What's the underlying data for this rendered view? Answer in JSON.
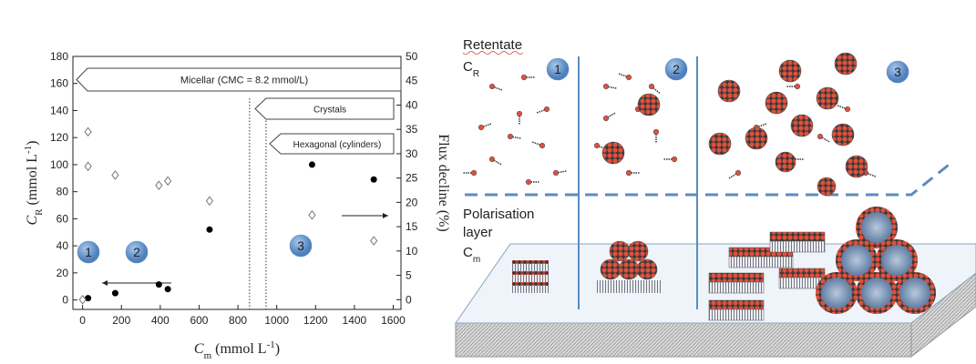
{
  "chart_data": {
    "type": "scatter",
    "xlim": [
      -50,
      1640
    ],
    "xticks": [
      0,
      200,
      400,
      600,
      800,
      1000,
      1200,
      1400,
      1600
    ],
    "ylim": [
      -7,
      180
    ],
    "yticks": [
      0,
      20,
      40,
      60,
      80,
      100,
      120,
      140,
      160,
      180
    ],
    "y2lim": [
      -2,
      50
    ],
    "y2ticks": [
      0,
      5,
      10,
      15,
      20,
      25,
      30,
      35,
      40,
      45,
      50
    ],
    "xlabel": {
      "symbol": "C",
      "subscript": "m",
      "unit": "(mmol L",
      "superscript": "-1",
      "close": ")"
    },
    "ylabel": {
      "symbol": "C",
      "subscript": "R",
      "unit": "(mmol L",
      "superscript": "-1",
      "close": ")"
    },
    "y2label": "Flux decline (%)",
    "series": [
      {
        "marker": "circle",
        "color": "#000000",
        "x": [
          28,
          168,
          393,
          439,
          654,
          1182,
          1500
        ],
        "values": [
          1.3,
          5,
          11.4,
          8,
          52,
          100,
          89
        ]
      },
      {
        "marker": "diamond",
        "color": "#777777",
        "axis": "y2",
        "x": [
          0,
          28,
          28,
          168,
          393,
          439,
          654,
          1182,
          1500
        ],
        "values": [
          0,
          27.4,
          34.5,
          25.6,
          23.5,
          24.4,
          20.3,
          17.4,
          12.1
        ]
      }
    ],
    "annotations": [
      "Micellar (CMC = 8.2 mmol/L)",
      "Crystals",
      "Hexagonal (cylinders)"
    ],
    "phase_boundaries": [
      860,
      945
    ],
    "regions": [
      "1",
      "2",
      "3"
    ]
  },
  "diagram": {
    "retentate": "Retentate",
    "retentate_symbol": "C",
    "retentate_sub": "R",
    "layer": [
      "Polarisation",
      "layer"
    ],
    "layer_symbol": "C",
    "layer_sub": "m",
    "regions": [
      "1",
      "2",
      "3"
    ]
  }
}
